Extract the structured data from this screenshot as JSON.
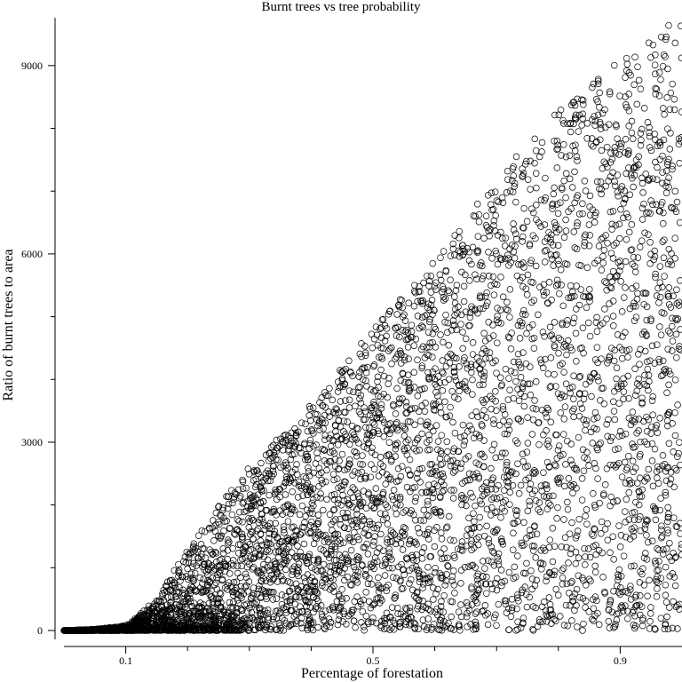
{
  "chart_data": {
    "type": "scatter",
    "title": "Burnt trees vs tree probability",
    "xlabel": "Percentage of forestation",
    "ylabel": "Ratio of burnt trees to area",
    "xlim": [
      0.0,
      1.0
    ],
    "ylim": [
      0,
      9800
    ],
    "x_ticks": [
      0.1,
      0.5,
      0.9
    ],
    "x_tick_labels": [
      "0.1",
      "0.5",
      "0.9"
    ],
    "y_ticks": [
      0,
      3000,
      6000,
      9000
    ],
    "y_tick_labels": [
      "0",
      "3000",
      "6000",
      "9000"
    ],
    "marker": "open-circle",
    "grid": false,
    "x_range_of_samples": [
      0.0,
      1.0
    ],
    "upper_envelope": [
      {
        "x": 0.05,
        "y": 20
      },
      {
        "x": 0.1,
        "y": 80
      },
      {
        "x": 0.15,
        "y": 500
      },
      {
        "x": 0.2,
        "y": 1300
      },
      {
        "x": 0.25,
        "y": 2000
      },
      {
        "x": 0.3,
        "y": 2600
      },
      {
        "x": 0.4,
        "y": 3600
      },
      {
        "x": 0.5,
        "y": 4800
      },
      {
        "x": 0.6,
        "y": 5900
      },
      {
        "x": 0.7,
        "y": 7200
      },
      {
        "x": 0.8,
        "y": 8300
      },
      {
        "x": 0.9,
        "y": 9100
      },
      {
        "x": 1.0,
        "y": 9800
      }
    ]
  }
}
